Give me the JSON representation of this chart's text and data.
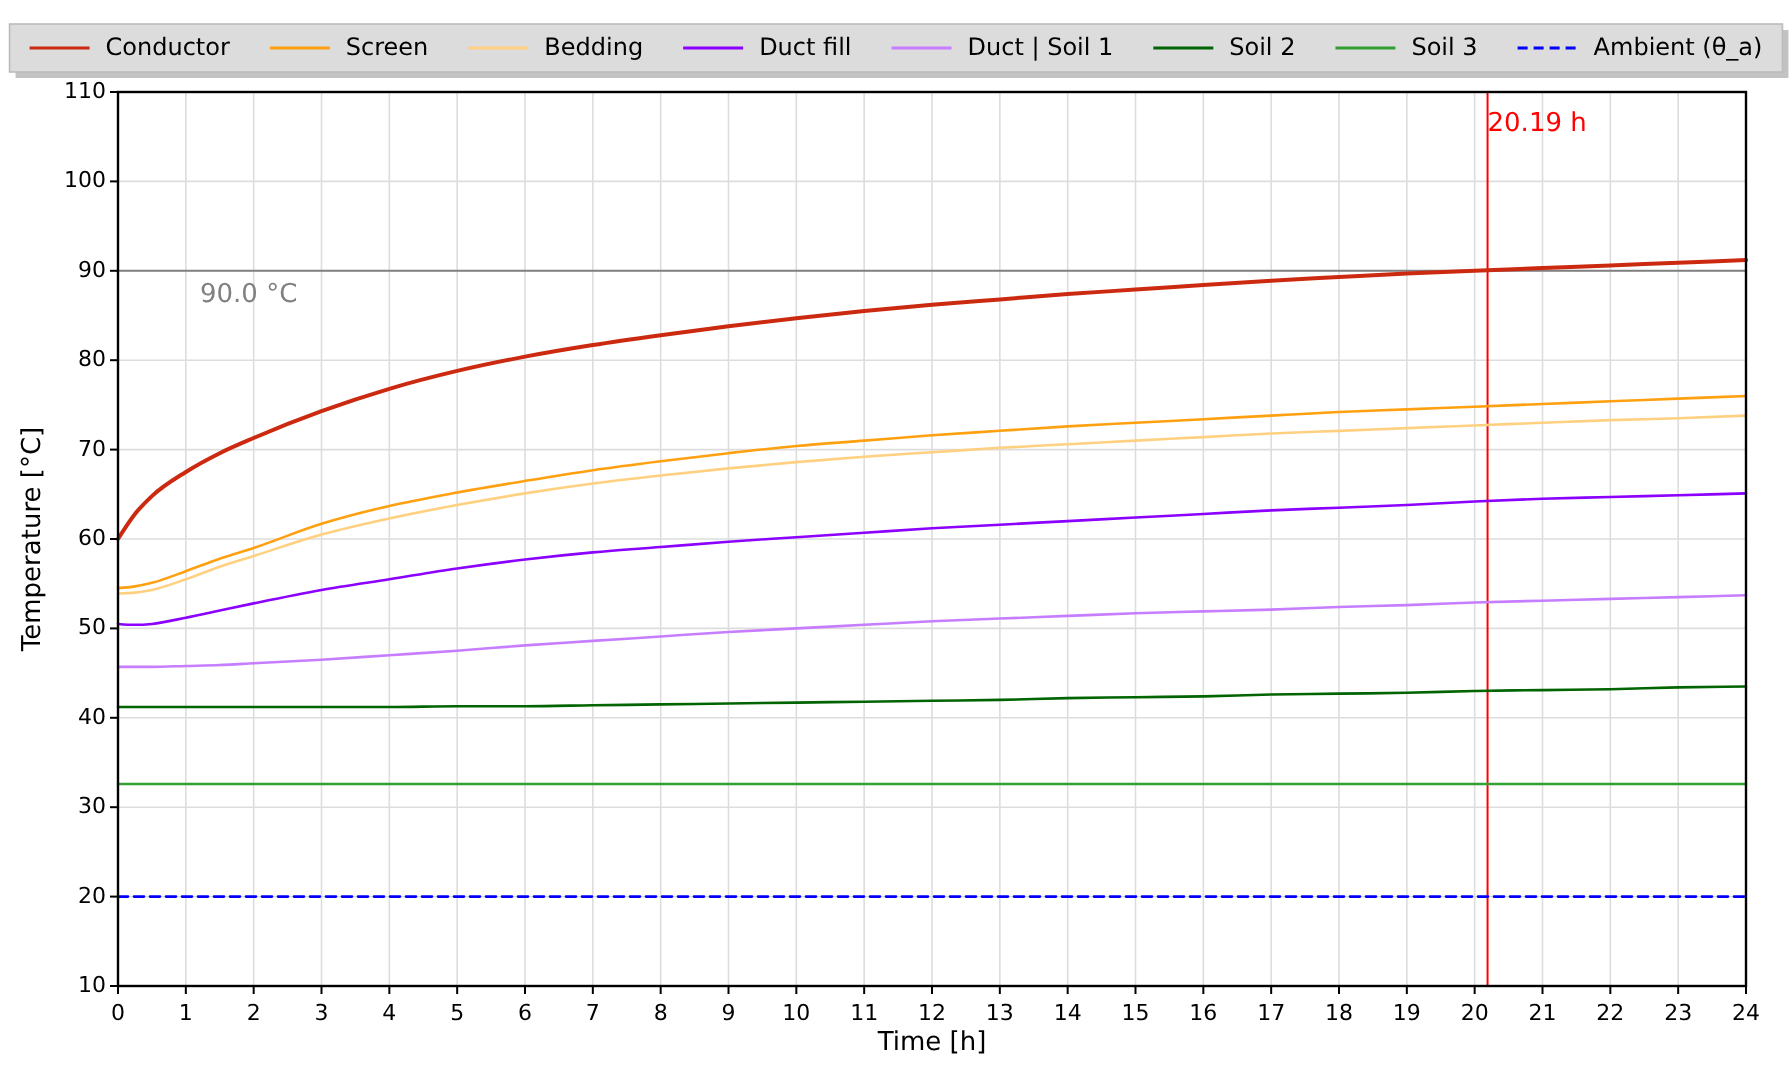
{
  "chart_data": {
    "type": "line",
    "xlabel": "Time [h]",
    "ylabel": "Temperature [°C]",
    "x": [
      0,
      0.25,
      0.5,
      1,
      1.5,
      2,
      3,
      4,
      5,
      6,
      7,
      8,
      9,
      10,
      11,
      12,
      13,
      14,
      15,
      16,
      17,
      18,
      19,
      20,
      21,
      22,
      23,
      24
    ],
    "xlim": [
      0,
      24
    ],
    "xticks": [
      0,
      1,
      2,
      3,
      4,
      5,
      6,
      7,
      8,
      9,
      10,
      11,
      12,
      13,
      14,
      15,
      16,
      17,
      18,
      19,
      20,
      21,
      22,
      23,
      24
    ],
    "ylim": [
      10,
      110
    ],
    "yticks": [
      10,
      20,
      30,
      40,
      50,
      60,
      70,
      80,
      90,
      100,
      110
    ],
    "grid": true,
    "legend": "top",
    "series": [
      {
        "name": "Conductor",
        "color": "#cc2a10",
        "values": [
          60,
          62.8,
          64.8,
          67.5,
          69.6,
          71.3,
          74.3,
          76.8,
          78.8,
          80.4,
          81.7,
          82.8,
          83.8,
          84.7,
          85.5,
          86.2,
          86.8,
          87.4,
          87.9,
          88.4,
          88.9,
          89.3,
          89.7,
          90.0,
          90.3,
          90.6,
          90.9,
          91.2
        ]
      },
      {
        "name": "Screen",
        "color": "#ffa010",
        "values": [
          54.5,
          54.7,
          55.1,
          56.4,
          57.8,
          59.0,
          61.7,
          63.7,
          65.2,
          66.5,
          67.7,
          68.7,
          69.6,
          70.4,
          71.0,
          71.6,
          72.1,
          72.6,
          73.0,
          73.4,
          73.8,
          74.2,
          74.5,
          74.8,
          75.1,
          75.4,
          75.7,
          76.0
        ]
      },
      {
        "name": "Bedding",
        "color": "#ffd080",
        "values": [
          53.9,
          54.0,
          54.3,
          55.5,
          56.9,
          58.1,
          60.5,
          62.3,
          63.8,
          65.1,
          66.2,
          67.1,
          67.9,
          68.6,
          69.2,
          69.7,
          70.2,
          70.6,
          71.0,
          71.4,
          71.8,
          72.1,
          72.4,
          72.7,
          73.0,
          73.3,
          73.5,
          73.8
        ]
      },
      {
        "name": "Duct fill",
        "color": "#8b00ff",
        "values": [
          50.5,
          50.4,
          50.5,
          51.2,
          52.0,
          52.8,
          54.3,
          55.5,
          56.7,
          57.7,
          58.5,
          59.1,
          59.7,
          60.2,
          60.7,
          61.2,
          61.6,
          62.0,
          62.4,
          62.8,
          63.2,
          63.5,
          63.8,
          64.2,
          64.5,
          64.7,
          64.9,
          65.1
        ]
      },
      {
        "name": "Duct | Soil 1",
        "color": "#c77dff",
        "values": [
          45.7,
          45.7,
          45.7,
          45.8,
          45.9,
          46.1,
          46.5,
          47.0,
          47.5,
          48.1,
          48.6,
          49.1,
          49.6,
          50.0,
          50.4,
          50.8,
          51.1,
          51.4,
          51.7,
          51.9,
          52.1,
          52.4,
          52.6,
          52.9,
          53.1,
          53.3,
          53.5,
          53.7
        ]
      },
      {
        "name": "Soil 2",
        "color": "#006400",
        "values": [
          41.2,
          41.2,
          41.2,
          41.2,
          41.2,
          41.2,
          41.2,
          41.2,
          41.3,
          41.3,
          41.4,
          41.5,
          41.6,
          41.7,
          41.8,
          41.9,
          42.0,
          42.2,
          42.3,
          42.4,
          42.6,
          42.7,
          42.8,
          43.0,
          43.1,
          43.2,
          43.4,
          43.5
        ]
      },
      {
        "name": "Soil 3",
        "color": "#33a033",
        "values": [
          32.6,
          32.6,
          32.6,
          32.6,
          32.6,
          32.6,
          32.6,
          32.6,
          32.6,
          32.6,
          32.6,
          32.6,
          32.6,
          32.6,
          32.6,
          32.6,
          32.6,
          32.6,
          32.6,
          32.6,
          32.6,
          32.6,
          32.6,
          32.6,
          32.6,
          32.6,
          32.6,
          32.6
        ]
      },
      {
        "name": "Ambient (θ_a)",
        "color": "#0000ff",
        "values": [
          20,
          20,
          20,
          20,
          20,
          20,
          20,
          20,
          20,
          20,
          20,
          20,
          20,
          20,
          20,
          20,
          20,
          20,
          20,
          20,
          20,
          20,
          20,
          20,
          20,
          20,
          20,
          20
        ],
        "line_style": "dashed"
      }
    ],
    "ref_lines": [
      {
        "axis": "y",
        "value": 90,
        "label": "90.0 °C",
        "color": "#808080"
      },
      {
        "axis": "x",
        "value": 20.19,
        "label": "20.19 h",
        "color": "#ff0000"
      }
    ]
  }
}
